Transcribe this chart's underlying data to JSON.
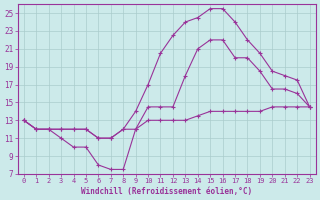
{
  "background_color": "#cceaea",
  "grid_color": "#aacccc",
  "line_color": "#993399",
  "marker_color": "#993399",
  "xlabel": "Windchill (Refroidissement éolien,°C)",
  "xlim": [
    -0.5,
    23.5
  ],
  "ylim": [
    7,
    26
  ],
  "yticks": [
    7,
    9,
    11,
    13,
    15,
    17,
    19,
    21,
    23,
    25
  ],
  "xticks": [
    0,
    1,
    2,
    3,
    4,
    5,
    6,
    7,
    8,
    9,
    10,
    11,
    12,
    13,
    14,
    15,
    16,
    17,
    18,
    19,
    20,
    21,
    22,
    23
  ],
  "line1_x": [
    0,
    1,
    2,
    3,
    4,
    5,
    6,
    7,
    8,
    9,
    10,
    11,
    12,
    13,
    14,
    15,
    16,
    17,
    18,
    19,
    20,
    21,
    22,
    23
  ],
  "line1_y": [
    13,
    12,
    12,
    12,
    12,
    12,
    11,
    11,
    12,
    12,
    13,
    13,
    13,
    13,
    13.5,
    14,
    14,
    14,
    14,
    14,
    14.5,
    14.5,
    14.5,
    14.5
  ],
  "line2_x": [
    0,
    1,
    2,
    3,
    4,
    5,
    6,
    7,
    8,
    9,
    10,
    11,
    12,
    13,
    14,
    15,
    16,
    17,
    18,
    19,
    20,
    21,
    22,
    23
  ],
  "line2_y": [
    13,
    12,
    12,
    11,
    10,
    10,
    8,
    7.5,
    7.5,
    12,
    14.5,
    14.5,
    14.5,
    18,
    21,
    22,
    22,
    20,
    20,
    18.5,
    16.5,
    16.5,
    16,
    14.5
  ],
  "line3_x": [
    0,
    1,
    2,
    3,
    4,
    5,
    6,
    7,
    8,
    9,
    10,
    11,
    12,
    13,
    14,
    15,
    16,
    17,
    18,
    19,
    20,
    21,
    22,
    23
  ],
  "line3_y": [
    13,
    12,
    12,
    12,
    12,
    12,
    11,
    11,
    12,
    14,
    17,
    20.5,
    22.5,
    24,
    24.5,
    25.5,
    25.5,
    24,
    22,
    20.5,
    18.5,
    18,
    17.5,
    14.5
  ]
}
